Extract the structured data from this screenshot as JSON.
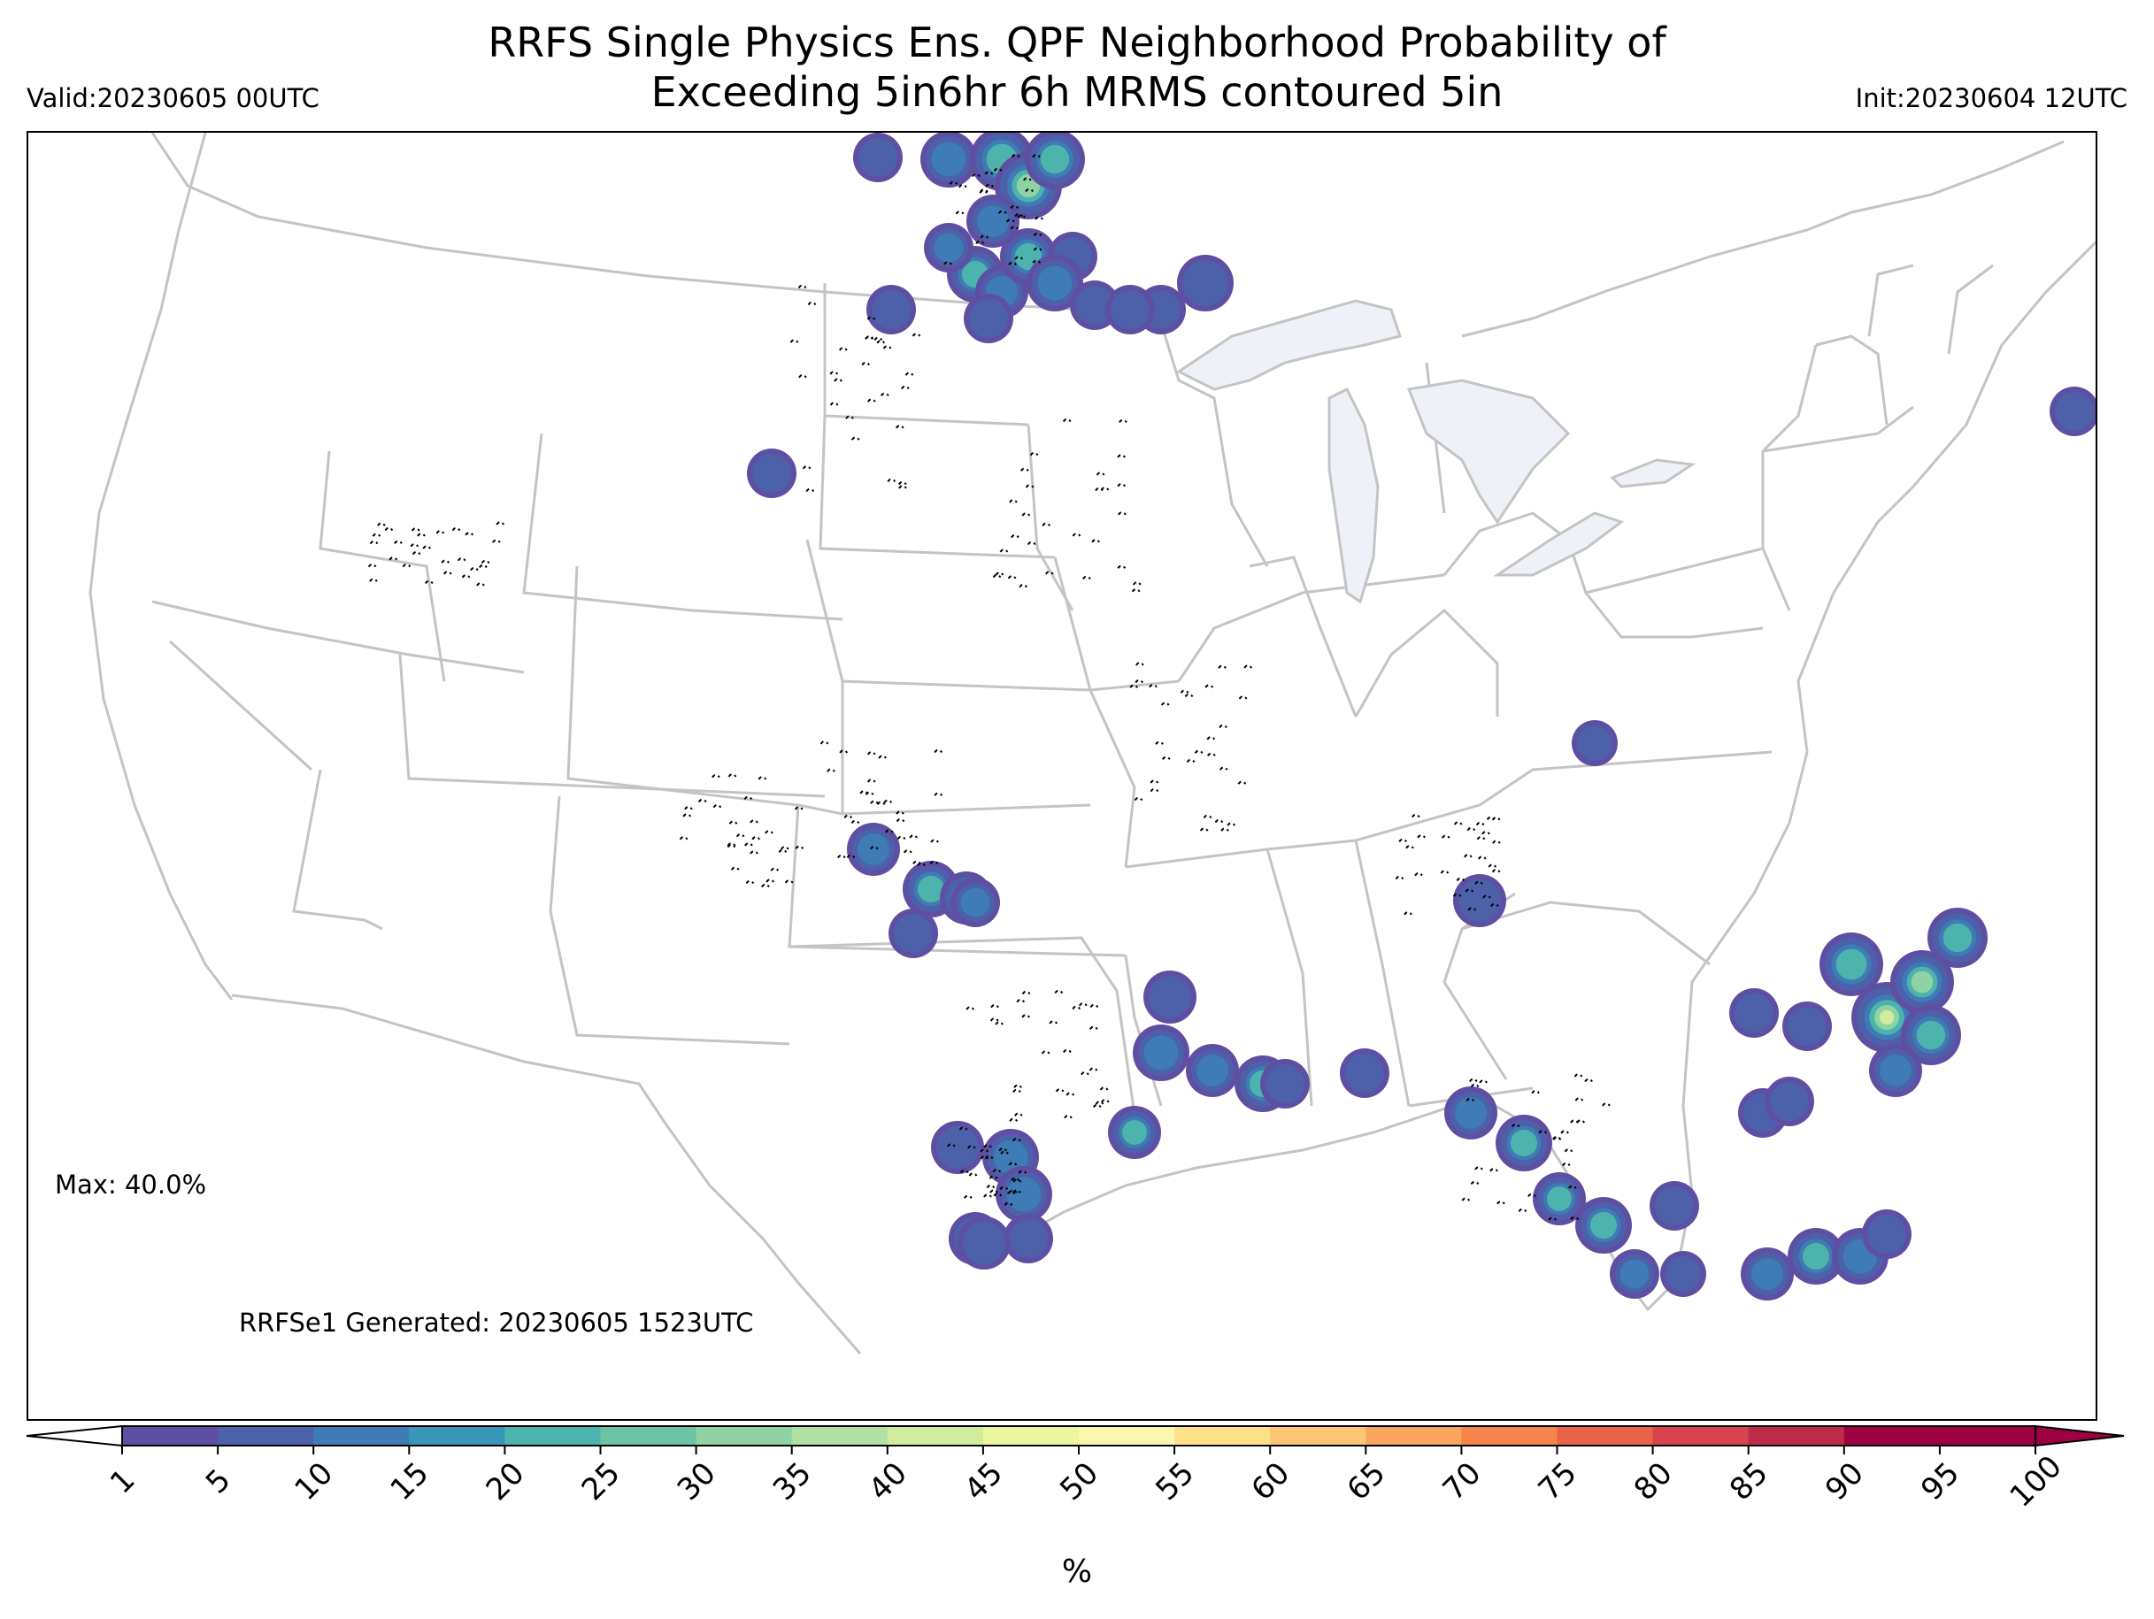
{
  "title_line1": "RRFS Single Physics Ens. QPF Neighborhood Probability of",
  "title_line2": "Exceeding 5in6hr 6h MRMS contoured 5in",
  "valid": "Valid:20230605 00UTC",
  "init": "Init:20230604 12UTC",
  "max_label": "Max: 40.0%",
  "generated": "RRFSe1 Generated: 20230605 1523UTC",
  "colorbar": {
    "unit": "%",
    "ticks": [
      "1",
      "5",
      "10",
      "15",
      "20",
      "25",
      "30",
      "35",
      "40",
      "45",
      "50",
      "55",
      "60",
      "65",
      "70",
      "75",
      "80",
      "85",
      "90",
      "95",
      "100"
    ],
    "colors": [
      "#5e4fa2",
      "#4d60aa",
      "#3f7bb5",
      "#3897b8",
      "#4db4ad",
      "#6cc4a5",
      "#8fd3a4",
      "#b1e0a3",
      "#d1ec9c",
      "#ecf69c",
      "#fbf6b0",
      "#fde18a",
      "#fdc675",
      "#fba65e",
      "#f6844d",
      "#ea6248",
      "#d8434e",
      "#bf2a4a",
      "#9e0142",
      "#9e0142"
    ],
    "extend_left_color": "#ffffff",
    "extend_right_color": "#9e0142"
  },
  "map": {
    "lake_color": "#eef2f8",
    "border_color": "#c4c4c4",
    "contour_color": "#000000"
  }
}
